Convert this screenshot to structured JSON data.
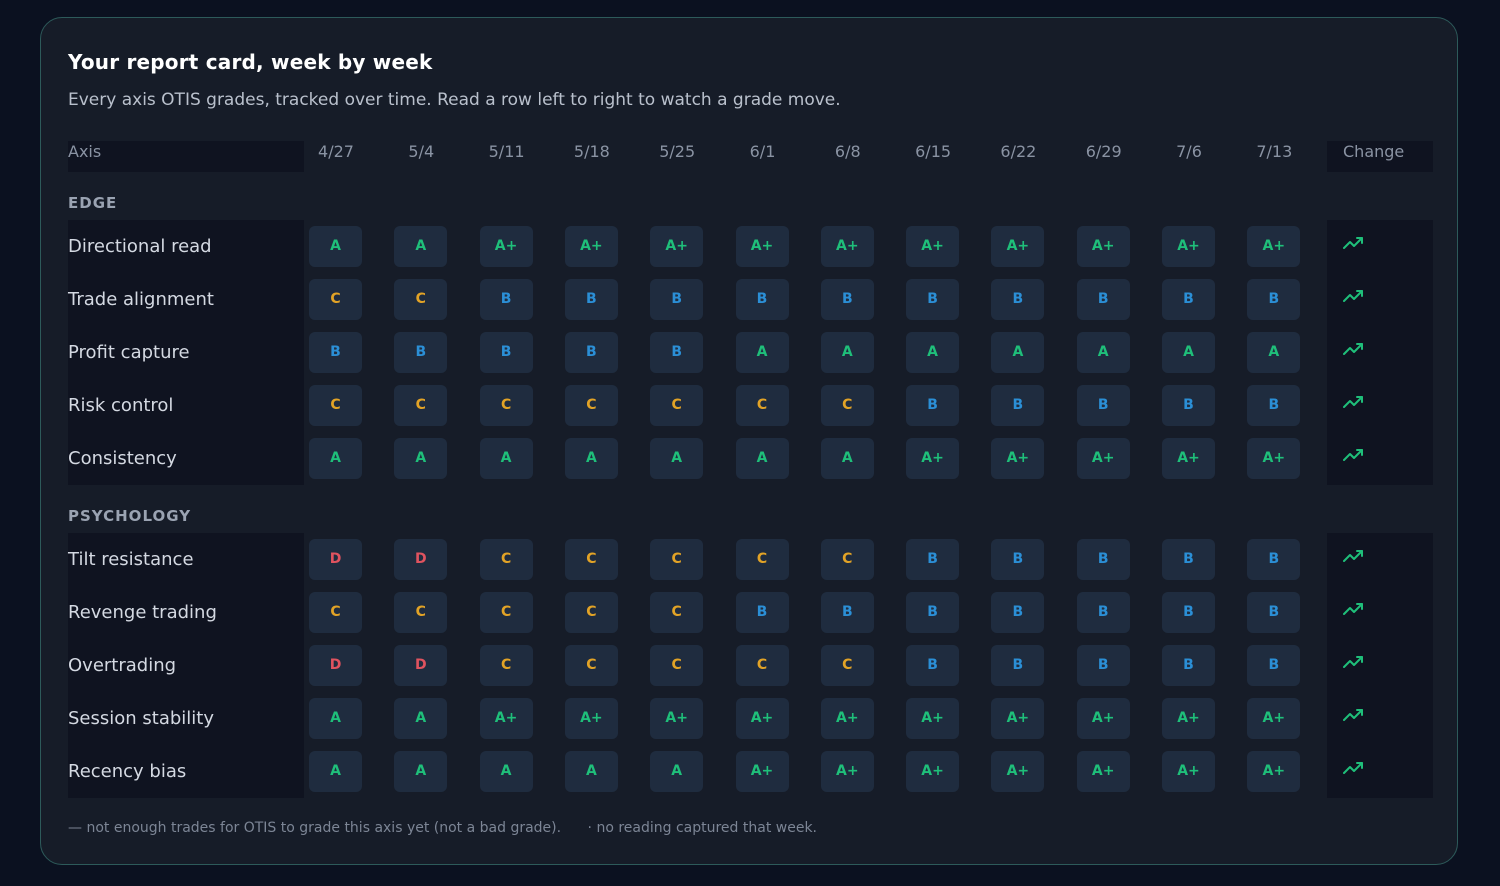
{
  "title": "Your report card, week by week",
  "subtitle": "Every axis OTIS grades, tracked over time. Read a row left to right to watch a grade move.",
  "header": {
    "axis_label": "Axis",
    "change_label": "Change",
    "weeks": [
      "4/27",
      "5/4",
      "5/11",
      "5/18",
      "5/25",
      "6/1",
      "6/8",
      "6/15",
      "6/22",
      "6/29",
      "7/6",
      "7/13"
    ]
  },
  "sections": [
    {
      "label": "EDGE",
      "rows": [
        {
          "axis": "Directional read",
          "grades": [
            "A",
            "A",
            "A+",
            "A+",
            "A+",
            "A+",
            "A+",
            "A+",
            "A+",
            "A+",
            "A+",
            "A+"
          ],
          "change": "trending-up-icon"
        },
        {
          "axis": "Trade alignment",
          "grades": [
            "C",
            "C",
            "B",
            "B",
            "B",
            "B",
            "B",
            "B",
            "B",
            "B",
            "B",
            "B"
          ],
          "change": "trending-up-icon"
        },
        {
          "axis": "Profit capture",
          "grades": [
            "B",
            "B",
            "B",
            "B",
            "B",
            "A",
            "A",
            "A",
            "A",
            "A",
            "A",
            "A"
          ],
          "change": "trending-up-icon"
        },
        {
          "axis": "Risk control",
          "grades": [
            "C",
            "C",
            "C",
            "C",
            "C",
            "C",
            "C",
            "B",
            "B",
            "B",
            "B",
            "B"
          ],
          "change": "trending-up-icon"
        },
        {
          "axis": "Consistency",
          "grades": [
            "A",
            "A",
            "A",
            "A",
            "A",
            "A",
            "A",
            "A+",
            "A+",
            "A+",
            "A+",
            "A+"
          ],
          "change": "trending-up-icon"
        }
      ]
    },
    {
      "label": "PSYCHOLOGY",
      "rows": [
        {
          "axis": "Tilt resistance",
          "grades": [
            "D",
            "D",
            "C",
            "C",
            "C",
            "C",
            "C",
            "B",
            "B",
            "B",
            "B",
            "B"
          ],
          "change": "trending-up-icon"
        },
        {
          "axis": "Revenge trading",
          "grades": [
            "C",
            "C",
            "C",
            "C",
            "C",
            "B",
            "B",
            "B",
            "B",
            "B",
            "B",
            "B"
          ],
          "change": "trending-up-icon"
        },
        {
          "axis": "Overtrading",
          "grades": [
            "D",
            "D",
            "C",
            "C",
            "C",
            "C",
            "C",
            "B",
            "B",
            "B",
            "B",
            "B"
          ],
          "change": "trending-up-icon"
        },
        {
          "axis": "Session stability",
          "grades": [
            "A",
            "A",
            "A+",
            "A+",
            "A+",
            "A+",
            "A+",
            "A+",
            "A+",
            "A+",
            "A+",
            "A+"
          ],
          "change": "trending-up-icon"
        },
        {
          "axis": "Recency bias",
          "grades": [
            "A",
            "A",
            "A",
            "A",
            "A",
            "A+",
            "A+",
            "A+",
            "A+",
            "A+",
            "A+",
            "A+"
          ],
          "change": "trending-up-icon"
        }
      ]
    }
  ],
  "footnotes": [
    "— not enough trades for OTIS to grade this axis yet (not a bad grade).",
    "· no reading captured that week."
  ],
  "colors": {
    "grade_a": "#1fbf7a",
    "grade_b": "#2b8fd6",
    "grade_c": "#e2a326",
    "grade_d": "#e0535f",
    "trend_up": "#1fbf7a"
  }
}
